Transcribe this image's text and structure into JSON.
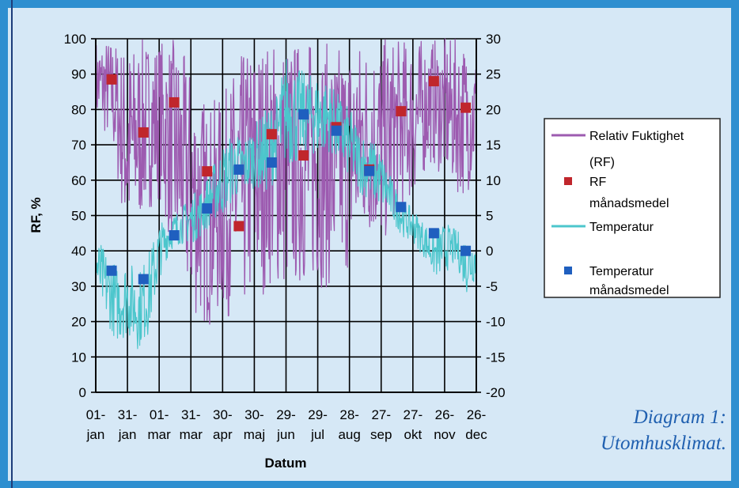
{
  "caption": {
    "line1": "Diagram 1:",
    "line2": "Utomhusklimat."
  },
  "colors": {
    "background": "#d6e8f6",
    "rf_series": "#9d5bb0",
    "rf_mean": "#c0262c",
    "temp_series": "#4cc6cc",
    "temp_mean": "#1f5fbf",
    "grid": "#000000"
  },
  "chart_data": {
    "type": "line",
    "xlabel": "Datum",
    "ylabel": "RF, %",
    "ylim": [
      0,
      100
    ],
    "y2lim": [
      -20,
      30
    ],
    "yticks": [
      "0",
      "10",
      "20",
      "30",
      "40",
      "50",
      "60",
      "70",
      "80",
      "90",
      "100"
    ],
    "y2ticks": [
      "-20",
      "-15",
      "-10",
      "-5",
      "0",
      "5",
      "10",
      "15",
      "20",
      "25",
      "30"
    ],
    "xticks": [
      {
        "day": "01-",
        "month": "jan"
      },
      {
        "day": "31-",
        "month": "jan"
      },
      {
        "day": "01-",
        "month": "mar"
      },
      {
        "day": "31-",
        "month": "mar"
      },
      {
        "day": "30-",
        "month": "apr"
      },
      {
        "day": "30-",
        "month": "maj"
      },
      {
        "day": "29-",
        "month": "jun"
      },
      {
        "day": "29-",
        "month": "jul"
      },
      {
        "day": "28-",
        "month": "aug"
      },
      {
        "day": "27-",
        "month": "sep"
      },
      {
        "day": "27-",
        "month": "okt"
      },
      {
        "day": "26-",
        "month": "nov"
      },
      {
        "day": "26-",
        "month": "dec"
      }
    ],
    "grid": true,
    "legend_position": "right",
    "legend": [
      {
        "name": "Relativ Fuktighet",
        "name2": "(RF)",
        "kind": "line",
        "color": "#9d5bb0"
      },
      {
        "name": "RF",
        "name2": "månadsmedel",
        "kind": "square",
        "color": "#c0262c"
      },
      {
        "name": "Temperatur",
        "name2": "",
        "kind": "line",
        "color": "#4cc6cc"
      },
      {
        "name": "Temperatur",
        "name2": "månadsmedel",
        "kind": "square",
        "color": "#1f5fbf"
      }
    ],
    "series": [
      {
        "name": "Relativ Fuktighet (RF)",
        "axis": "left",
        "color": "#9d5bb0",
        "band": [
          {
            "x": 0,
            "lo": 76,
            "hi": 100
          },
          {
            "x": 15,
            "lo": 70,
            "hi": 100
          },
          {
            "x": 30,
            "lo": 40,
            "hi": 98
          },
          {
            "x": 45,
            "lo": 50,
            "hi": 100
          },
          {
            "x": 60,
            "lo": 55,
            "hi": 100
          },
          {
            "x": 75,
            "lo": 35,
            "hi": 100
          },
          {
            "x": 90,
            "lo": 22,
            "hi": 92
          },
          {
            "x": 105,
            "lo": 18,
            "hi": 82
          },
          {
            "x": 120,
            "lo": 22,
            "hi": 84
          },
          {
            "x": 135,
            "lo": 20,
            "hi": 95
          },
          {
            "x": 150,
            "lo": 25,
            "hi": 100
          },
          {
            "x": 165,
            "lo": 30,
            "hi": 100
          },
          {
            "x": 180,
            "lo": 28,
            "hi": 100
          },
          {
            "x": 195,
            "lo": 30,
            "hi": 100
          },
          {
            "x": 210,
            "lo": 30,
            "hi": 100
          },
          {
            "x": 225,
            "lo": 28,
            "hi": 98
          },
          {
            "x": 240,
            "lo": 35,
            "hi": 100
          },
          {
            "x": 255,
            "lo": 45,
            "hi": 100
          },
          {
            "x": 270,
            "lo": 40,
            "hi": 100
          },
          {
            "x": 285,
            "lo": 50,
            "hi": 100
          },
          {
            "x": 300,
            "lo": 55,
            "hi": 100
          },
          {
            "x": 315,
            "lo": 65,
            "hi": 100
          },
          {
            "x": 330,
            "lo": 60,
            "hi": 100
          },
          {
            "x": 345,
            "lo": 55,
            "hi": 100
          },
          {
            "x": 359,
            "lo": 60,
            "hi": 96
          }
        ]
      },
      {
        "name": "RF månadsmedel",
        "axis": "left",
        "color": "#c0262c",
        "points": [
          {
            "x": 15,
            "y": 88.5
          },
          {
            "x": 45,
            "y": 73.5
          },
          {
            "x": 74,
            "y": 82
          },
          {
            "x": 105,
            "y": 62.5
          },
          {
            "x": 135,
            "y": 47
          },
          {
            "x": 166,
            "y": 73
          },
          {
            "x": 196,
            "y": 67
          },
          {
            "x": 227,
            "y": 75
          },
          {
            "x": 258,
            "y": 63
          },
          {
            "x": 288,
            "y": 79.5
          },
          {
            "x": 319,
            "y": 88
          },
          {
            "x": 349,
            "y": 80.5
          }
        ]
      },
      {
        "name": "Temperatur",
        "axis": "right",
        "color": "#4cc6cc",
        "band": [
          {
            "x": 0,
            "lo": -6,
            "hi": 2
          },
          {
            "x": 10,
            "lo": -10,
            "hi": 0
          },
          {
            "x": 20,
            "lo": -13,
            "hi": -2
          },
          {
            "x": 30,
            "lo": -12,
            "hi": -1
          },
          {
            "x": 40,
            "lo": -14,
            "hi": -3
          },
          {
            "x": 50,
            "lo": -12,
            "hi": 0
          },
          {
            "x": 60,
            "lo": -4,
            "hi": 4
          },
          {
            "x": 70,
            "lo": 0,
            "hi": 5
          },
          {
            "x": 80,
            "lo": 1,
            "hi": 6
          },
          {
            "x": 90,
            "lo": 1,
            "hi": 8
          },
          {
            "x": 100,
            "lo": 2,
            "hi": 9
          },
          {
            "x": 110,
            "lo": 4,
            "hi": 12
          },
          {
            "x": 120,
            "lo": 5,
            "hi": 15
          },
          {
            "x": 130,
            "lo": 7,
            "hi": 17
          },
          {
            "x": 140,
            "lo": 8,
            "hi": 16
          },
          {
            "x": 150,
            "lo": 9,
            "hi": 18
          },
          {
            "x": 160,
            "lo": 8,
            "hi": 20
          },
          {
            "x": 170,
            "lo": 10,
            "hi": 22
          },
          {
            "x": 180,
            "lo": 12,
            "hi": 28
          },
          {
            "x": 190,
            "lo": 12,
            "hi": 26
          },
          {
            "x": 200,
            "lo": 14,
            "hi": 25
          },
          {
            "x": 210,
            "lo": 13,
            "hi": 25
          },
          {
            "x": 220,
            "lo": 14,
            "hi": 24
          },
          {
            "x": 230,
            "lo": 12,
            "hi": 22
          },
          {
            "x": 240,
            "lo": 10,
            "hi": 20
          },
          {
            "x": 250,
            "lo": 8,
            "hi": 17
          },
          {
            "x": 260,
            "lo": 7,
            "hi": 16
          },
          {
            "x": 270,
            "lo": 6,
            "hi": 14
          },
          {
            "x": 280,
            "lo": 4,
            "hi": 10
          },
          {
            "x": 290,
            "lo": 2,
            "hi": 7
          },
          {
            "x": 300,
            "lo": 1,
            "hi": 6
          },
          {
            "x": 310,
            "lo": -1,
            "hi": 4
          },
          {
            "x": 320,
            "lo": -4,
            "hi": 3
          },
          {
            "x": 330,
            "lo": -3,
            "hi": 4
          },
          {
            "x": 340,
            "lo": -2,
            "hi": 3
          },
          {
            "x": 350,
            "lo": -6,
            "hi": 2
          },
          {
            "x": 359,
            "lo": -4,
            "hi": 2
          }
        ]
      },
      {
        "name": "Temperatur månadsmedel",
        "axis": "right",
        "color": "#1f5fbf",
        "points": [
          {
            "x": 15,
            "y": -2.8
          },
          {
            "x": 45,
            "y": -4
          },
          {
            "x": 74,
            "y": 2.2
          },
          {
            "x": 105,
            "y": 6
          },
          {
            "x": 135,
            "y": 11.5
          },
          {
            "x": 166,
            "y": 12.5
          },
          {
            "x": 196,
            "y": 19.3
          },
          {
            "x": 227,
            "y": 17
          },
          {
            "x": 258,
            "y": 11.3
          },
          {
            "x": 288,
            "y": 6.2
          },
          {
            "x": 319,
            "y": 2.5
          },
          {
            "x": 349,
            "y": 0
          }
        ]
      }
    ]
  }
}
